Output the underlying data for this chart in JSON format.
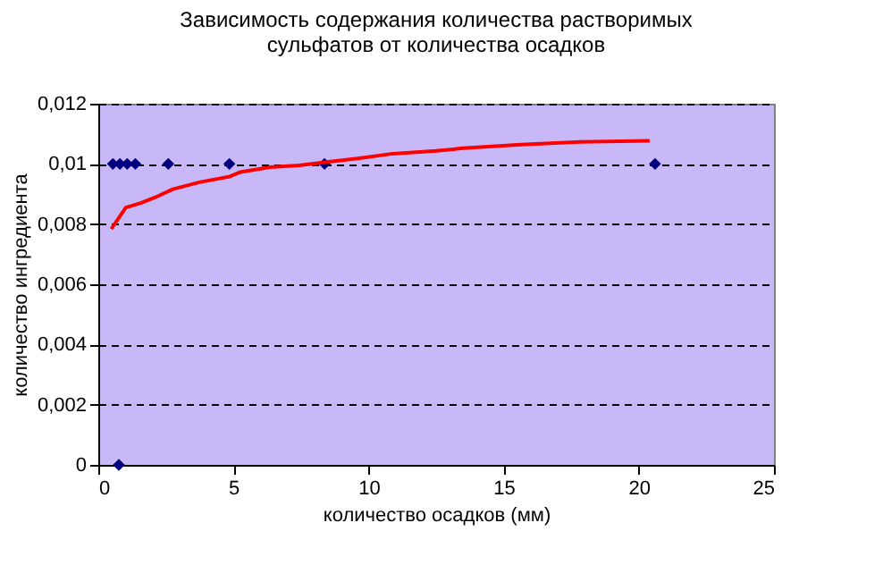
{
  "chart_data": {
    "type": "scatter",
    "title": [
      "Зависимость содержания количества растворимых",
      "сульфатов от количества осадков"
    ],
    "xlabel": "количество осадков (мм)",
    "ylabel": "количество ингредиента",
    "series": [
      {
        "color": "#000080",
        "marker": "diamond",
        "x": [
          0.54,
          0.8,
          1.07,
          1.37,
          2.59,
          4.85,
          8.37,
          20.6,
          0.76
        ],
        "values": [
          0.01,
          0.01,
          0.01,
          0.01,
          0.01,
          0.01,
          0.01,
          0.01,
          0
        ]
      },
      {
        "type": "line",
        "color": "#ff0000",
        "x": [
          0.48,
          1.02,
          1.57,
          2.11,
          2.76,
          3.74,
          4.83,
          5.26,
          6.35,
          7.43,
          8.52,
          9.6,
          10.9,
          12.5,
          13.5,
          15.65,
          17.8,
          20.4
        ],
        "values": [
          0.00784,
          0.00855,
          0.0087,
          0.00889,
          0.00916,
          0.00939,
          0.00957,
          0.00973,
          0.00989,
          0.00995,
          0.01007,
          0.01018,
          0.01034,
          0.01043,
          0.01052,
          0.01064,
          0.01073,
          0.01077
        ]
      }
    ],
    "xlim": [
      0,
      25
    ],
    "xticks": [
      0,
      5,
      10,
      15,
      20,
      25
    ],
    "ylim": [
      0,
      0.012
    ],
    "yticks": [
      0,
      {
        "value": 0.002,
        "label": "0,002"
      },
      {
        "value": 0.004,
        "label": "0,004"
      },
      {
        "value": 0.006,
        "label": "0,006"
      },
      {
        "value": 0.008,
        "label": "0,008"
      },
      {
        "value": 0.01,
        "label": "0,01"
      },
      {
        "value": 0.012,
        "label": "0,012"
      }
    ],
    "grid": "y"
  }
}
